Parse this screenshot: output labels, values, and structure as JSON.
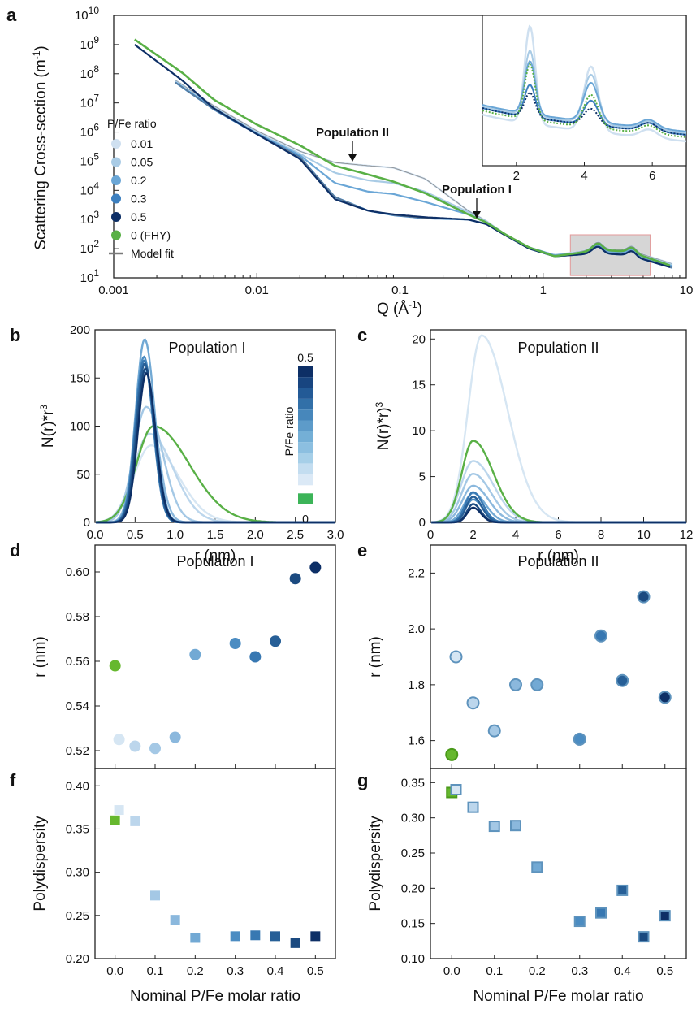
{
  "panel_labels": [
    "a",
    "b",
    "c",
    "d",
    "e",
    "f",
    "g"
  ],
  "colors": {
    "0.01": "#cfe0f0",
    "0.05": "#a9cbe5",
    "0.2": "#6aa6d6",
    "0.3": "#3c7fbf",
    "0.5": "#0d2f66",
    "FHY": "#59b046",
    "fit": "#7a7a7a",
    "bar": [
      "#0d2f66",
      "#184580",
      "#235a96",
      "#3270a8",
      "#4787bb",
      "#5d9bc9",
      "#74afd6",
      "#8cbfe0",
      "#a6cfe8",
      "#c3ddf0",
      "#dbe9f6",
      "#3cb458"
    ]
  },
  "chart_data": [
    {
      "panel": "a",
      "type": "line",
      "ylabel": "Scattering Cross-section (m",
      "ylabel_sup": "-1",
      "ylabel_end": ")",
      "xlabel": "Q (Å",
      "xlabel_sup": "-1",
      "xlabel_end": ")",
      "xscale": "log",
      "yscale": "log",
      "xlim": [
        0.001,
        10
      ],
      "ylim": [
        10,
        10000000000
      ],
      "xticks": [
        "0.001",
        "0.01",
        "0.1",
        "1",
        "10"
      ],
      "yticks": [
        "10",
        "10",
        "10",
        "10",
        "10",
        "10",
        "10",
        "10",
        "10",
        "10"
      ],
      "yticks_exp": [
        "1",
        "2",
        "3",
        "4",
        "5",
        "6",
        "7",
        "8",
        "9",
        "10"
      ],
      "legend_title": "P/Fe ratio",
      "legend": [
        "0.01",
        "0.05",
        "0.2",
        "0.3",
        "0.5",
        "0 (FHY)",
        "Model fit"
      ],
      "legend_position": "left",
      "annotations": [
        "Population II",
        "Population I"
      ],
      "inset": {
        "xlim": [
          1,
          7
        ],
        "xticks": [
          "2",
          "4",
          "6"
        ]
      },
      "series": [
        {
          "name": "0.01",
          "q": [
            0.0027,
            0.005,
            0.01,
            0.02,
            0.035,
            0.06,
            0.09,
            0.15,
            0.3,
            0.4,
            0.55,
            0.8,
            1.2,
            2.5,
            4,
            8
          ],
          "I": [
            60000000,
            8000000,
            1100000,
            220000,
            90000,
            70000,
            60000,
            25000,
            2000,
            900,
            300,
            110,
            60,
            100,
            90,
            30
          ]
        },
        {
          "name": "0.05",
          "q": [
            0.0027,
            0.005,
            0.01,
            0.02,
            0.035,
            0.06,
            0.09,
            0.15,
            0.3,
            0.4,
            0.55,
            0.8,
            1.2,
            2.5,
            4,
            8
          ],
          "I": [
            55000000,
            7000000,
            950000,
            180000,
            40000,
            22000,
            18000,
            9000,
            1800,
            850,
            300,
            110,
            60,
            90,
            80,
            28
          ]
        },
        {
          "name": "0.2",
          "q": [
            0.0027,
            0.005,
            0.01,
            0.02,
            0.035,
            0.06,
            0.09,
            0.15,
            0.3,
            0.4,
            0.55,
            0.8,
            1.2,
            2.5,
            4,
            8
          ],
          "I": [
            50000000,
            6500000,
            900000,
            160000,
            18000,
            9000,
            7500,
            4000,
            1500,
            800,
            300,
            110,
            60,
            80,
            70,
            25
          ]
        },
        {
          "name": "0.3",
          "q": [
            0.0027,
            0.005,
            0.01,
            0.02,
            0.035,
            0.06,
            0.09,
            0.15,
            0.3,
            0.4,
            0.55,
            0.8,
            1.2,
            2.5,
            4,
            8
          ],
          "I": [
            50000000,
            6000000,
            850000,
            140000,
            6000,
            2000,
            1400,
            1100,
            1000,
            700,
            280,
            100,
            55,
            70,
            60,
            22
          ]
        },
        {
          "name": "0.5",
          "q": [
            0.0014,
            0.003,
            0.005,
            0.01,
            0.02,
            0.035,
            0.06,
            0.09,
            0.15,
            0.3,
            0.4,
            0.55,
            0.8,
            1.2,
            2.5,
            4,
            8
          ],
          "I": [
            1000000000,
            60000000,
            6500000,
            850000,
            120000,
            5000,
            2000,
            1500,
            1200,
            1000,
            700,
            280,
            100,
            55,
            70,
            60,
            22
          ]
        },
        {
          "name": "0 (FHY)",
          "q": [
            0.0014,
            0.003,
            0.005,
            0.01,
            0.02,
            0.035,
            0.06,
            0.09,
            0.15,
            0.3,
            0.4,
            0.55,
            0.8,
            1.2,
            2.5,
            4,
            8
          ],
          "I": [
            1500000000,
            110000000,
            13000000,
            1800000,
            350000,
            70000,
            35000,
            20000,
            8000,
            1500,
            800,
            300,
            110,
            55,
            90,
            80,
            25
          ]
        }
      ]
    },
    {
      "panel": "b",
      "type": "line",
      "title": "Population I",
      "xlabel": "r (nm)",
      "ylabel": "N(r)*r",
      "ylabel_sup": "3",
      "xlim": [
        0,
        3
      ],
      "ylim": [
        0,
        200
      ],
      "xticks": [
        "0.0",
        "0.5",
        "1.0",
        "1.5",
        "2.0",
        "2.5",
        "3.0"
      ],
      "yticks": [
        "0",
        "50",
        "100",
        "150",
        "200"
      ],
      "colorbar": {
        "label": "P/Fe ratio",
        "top": "0.5",
        "bottom": "0"
      },
      "series": [
        {
          "name": "0.01",
          "peak_r": 0.7,
          "peak": 80,
          "width": 0.3,
          "skew": 1.6
        },
        {
          "name": "0.05",
          "peak_r": 0.68,
          "peak": 92,
          "width": 0.28,
          "skew": 1.5
        },
        {
          "name": "0.1",
          "peak_r": 0.64,
          "peak": 120,
          "width": 0.22,
          "skew": 1.3
        },
        {
          "name": "0.15",
          "peak_r": 0.62,
          "peak": 158,
          "width": 0.17,
          "skew": 1.2
        },
        {
          "name": "0.2",
          "peak_r": 0.62,
          "peak": 190,
          "width": 0.16,
          "skew": 1.1
        },
        {
          "name": "0.3",
          "peak_r": 0.61,
          "peak": 172,
          "width": 0.15,
          "skew": 1.1
        },
        {
          "name": "0.35",
          "peak_r": 0.61,
          "peak": 168,
          "width": 0.15,
          "skew": 1.1
        },
        {
          "name": "0.4",
          "peak_r": 0.62,
          "peak": 165,
          "width": 0.15,
          "skew": 1.1
        },
        {
          "name": "0.45",
          "peak_r": 0.63,
          "peak": 160,
          "width": 0.15,
          "skew": 1.1
        },
        {
          "name": "0.5",
          "peak_r": 0.64,
          "peak": 155,
          "width": 0.15,
          "skew": 1.1
        },
        {
          "name": "0 (FHY)",
          "peak_r": 0.73,
          "peak": 100,
          "width": 0.3,
          "skew": 2.1
        }
      ]
    },
    {
      "panel": "c",
      "type": "line",
      "title": "Population II",
      "xlabel": "r (nm)",
      "ylabel": "N(r)*r)",
      "ylabel_sup": "3",
      "xlim": [
        0,
        12
      ],
      "ylim": [
        0,
        21
      ],
      "xticks": [
        "0",
        "2",
        "4",
        "6",
        "8",
        "10",
        "12"
      ],
      "yticks": [
        "0",
        "5",
        "10",
        "15",
        "20"
      ],
      "series": [
        {
          "name": "0.01",
          "peak_r": 2.4,
          "peak": 20.4,
          "width": 0.9,
          "skew": 1.9
        },
        {
          "name": "0.05",
          "peak_r": 2.0,
          "peak": 6.7,
          "width": 0.8,
          "skew": 1.7
        },
        {
          "name": "0.1",
          "peak_r": 2.0,
          "peak": 5.3,
          "width": 0.75,
          "skew": 1.6
        },
        {
          "name": "0.15",
          "peak_r": 2.0,
          "peak": 4.0,
          "width": 0.7,
          "skew": 1.5
        },
        {
          "name": "0.2",
          "peak_r": 2.0,
          "peak": 3.2,
          "width": 0.6,
          "skew": 1.4
        },
        {
          "name": "0.3",
          "peak_r": 2.0,
          "peak": 2.5,
          "width": 0.5,
          "skew": 1.3
        },
        {
          "name": "0.35",
          "peak_r": 2.0,
          "peak": 3.3,
          "width": 0.5,
          "skew": 1.3
        },
        {
          "name": "0.4",
          "peak_r": 2.0,
          "peak": 2.8,
          "width": 0.45,
          "skew": 1.3
        },
        {
          "name": "0.45",
          "peak_r": 2.0,
          "peak": 2.0,
          "width": 0.4,
          "skew": 1.3
        },
        {
          "name": "0.5",
          "peak_r": 2.0,
          "peak": 1.6,
          "width": 0.4,
          "skew": 1.3
        },
        {
          "name": "0 (FHY)",
          "peak_r": 2.0,
          "peak": 8.9,
          "width": 0.75,
          "skew": 1.8
        }
      ]
    },
    {
      "panel": "d",
      "type": "scatter",
      "title": "Population I",
      "ylabel": "r (nm)",
      "xlim": [
        -0.05,
        0.55
      ],
      "ylim": [
        0.512,
        0.612
      ],
      "yticks": [
        "0.52",
        "0.54",
        "0.56",
        "0.58",
        "0.60"
      ],
      "x": [
        0.0,
        0.01,
        0.05,
        0.1,
        0.15,
        0.2,
        0.3,
        0.35,
        0.4,
        0.45,
        0.5
      ],
      "y": [
        0.558,
        0.525,
        0.522,
        0.521,
        0.526,
        0.563,
        0.568,
        0.562,
        0.569,
        0.597,
        0.602
      ]
    },
    {
      "panel": "e",
      "type": "scatter",
      "title": "Population II",
      "ylabel": "r (nm)",
      "xlim": [
        -0.05,
        0.55
      ],
      "ylim": [
        1.5,
        2.3
      ],
      "yticks": [
        "1.6",
        "1.8",
        "2.0",
        "2.2"
      ],
      "x": [
        0.0,
        0.01,
        0.05,
        0.1,
        0.15,
        0.2,
        0.3,
        0.35,
        0.4,
        0.45,
        0.5
      ],
      "y": [
        1.55,
        1.9,
        1.735,
        1.635,
        1.8,
        1.8,
        1.605,
        1.975,
        1.815,
        2.115,
        1.755
      ]
    },
    {
      "panel": "f",
      "type": "scatter",
      "ylabel": "Polydispersity",
      "xlabel": "Nominal P/Fe molar ratio",
      "xlim": [
        -0.05,
        0.55
      ],
      "ylim": [
        0.2,
        0.42
      ],
      "xticks": [
        "0.0",
        "0.1",
        "0.2",
        "0.3",
        "0.4",
        "0.5"
      ],
      "yticks": [
        "0.20",
        "0.25",
        "0.30",
        "0.35",
        "0.40"
      ],
      "x": [
        0.0,
        0.01,
        0.05,
        0.1,
        0.15,
        0.2,
        0.3,
        0.35,
        0.4,
        0.45,
        0.5
      ],
      "y": [
        0.36,
        0.372,
        0.359,
        0.273,
        0.245,
        0.224,
        0.226,
        0.227,
        0.226,
        0.218,
        0.226
      ]
    },
    {
      "panel": "g",
      "type": "scatter",
      "ylabel": "Polydispersity",
      "xlabel": "Nominal P/Fe molar ratio",
      "xlim": [
        -0.05,
        0.55
      ],
      "ylim": [
        0.1,
        0.37
      ],
      "xticks": [
        "0.0",
        "0.1",
        "0.2",
        "0.3",
        "0.4",
        "0.5"
      ],
      "yticks": [
        "0.10",
        "0.15",
        "0.20",
        "0.25",
        "0.30",
        "0.35"
      ],
      "x": [
        0.0,
        0.01,
        0.05,
        0.1,
        0.15,
        0.2,
        0.3,
        0.35,
        0.4,
        0.45,
        0.5
      ],
      "y": [
        0.336,
        0.34,
        0.315,
        0.288,
        0.289,
        0.23,
        0.153,
        0.165,
        0.197,
        0.131,
        0.161
      ]
    }
  ]
}
